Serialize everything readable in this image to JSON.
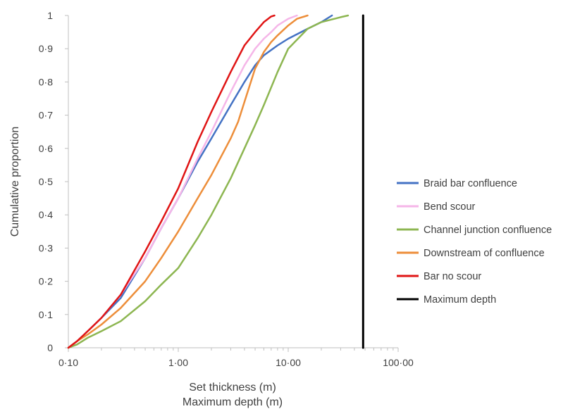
{
  "chart_data": {
    "type": "line",
    "xscale": "log",
    "xlim": [
      0.1,
      100
    ],
    "ylim": [
      0,
      1
    ],
    "x_ticks": [
      "0·10",
      "1·00",
      "10·00",
      "100·00"
    ],
    "y_ticks": [
      "0",
      "0·1",
      "0·2",
      "0·3",
      "0·4",
      "0·5",
      "0·6",
      "0·7",
      "0·8",
      "0·9",
      "1"
    ],
    "xlabel": "Set thickness (m)",
    "xlabel2": "Maximum depth (m)",
    "ylabel": "Cumulative proportion",
    "legend_position": "right",
    "series": [
      {
        "name": "Braid bar confluence",
        "color": "#4472C4",
        "x": [
          0.1,
          0.12,
          0.15,
          0.2,
          0.3,
          0.5,
          0.7,
          1.0,
          1.5,
          2.0,
          3.0,
          4.0,
          5.0,
          6.0,
          8.0,
          10.0,
          15.0,
          20.0,
          25.0
        ],
        "y": [
          0,
          0.02,
          0.05,
          0.09,
          0.15,
          0.27,
          0.36,
          0.45,
          0.56,
          0.63,
          0.73,
          0.8,
          0.85,
          0.88,
          0.91,
          0.93,
          0.96,
          0.98,
          1.0
        ]
      },
      {
        "name": "Bend scour",
        "color": "#F5B6E8",
        "x": [
          0.1,
          0.12,
          0.15,
          0.2,
          0.3,
          0.5,
          0.7,
          1.0,
          1.5,
          2.0,
          3.0,
          4.0,
          5.0,
          6.0,
          7.0,
          8.0,
          10.0,
          12.0
        ],
        "y": [
          0,
          0.02,
          0.05,
          0.09,
          0.16,
          0.27,
          0.36,
          0.45,
          0.57,
          0.65,
          0.77,
          0.85,
          0.9,
          0.93,
          0.95,
          0.97,
          0.99,
          1.0
        ]
      },
      {
        "name": "Channel junction confluence",
        "color": "#8DB651",
        "x": [
          0.1,
          0.12,
          0.15,
          0.2,
          0.3,
          0.5,
          0.7,
          1.0,
          1.5,
          2.0,
          3.0,
          4.0,
          5.0,
          6.0,
          8.0,
          10.0,
          15.0,
          20.0,
          30.0,
          35.0
        ],
        "y": [
          0,
          0.01,
          0.03,
          0.05,
          0.08,
          0.14,
          0.19,
          0.24,
          0.33,
          0.4,
          0.51,
          0.6,
          0.67,
          0.73,
          0.83,
          0.9,
          0.96,
          0.98,
          0.995,
          1.0
        ]
      },
      {
        "name": "Downstream of confluence",
        "color": "#ED8E3A",
        "x": [
          0.1,
          0.12,
          0.15,
          0.2,
          0.3,
          0.5,
          0.7,
          1.0,
          1.5,
          2.0,
          3.0,
          3.5,
          4.0,
          5.0,
          6.0,
          7.0,
          8.0,
          10.0,
          12.0,
          15.0
        ],
        "y": [
          0,
          0.02,
          0.04,
          0.07,
          0.12,
          0.2,
          0.27,
          0.35,
          0.45,
          0.52,
          0.63,
          0.68,
          0.74,
          0.84,
          0.89,
          0.92,
          0.94,
          0.97,
          0.99,
          1.0
        ]
      },
      {
        "name": "Bar no scour",
        "color": "#E01515",
        "x": [
          0.1,
          0.12,
          0.15,
          0.2,
          0.3,
          0.5,
          0.7,
          1.0,
          1.5,
          2.0,
          3.0,
          4.0,
          5.0,
          6.0,
          7.0,
          7.5
        ],
        "y": [
          0,
          0.02,
          0.05,
          0.09,
          0.16,
          0.29,
          0.38,
          0.48,
          0.62,
          0.71,
          0.83,
          0.91,
          0.95,
          0.98,
          0.997,
          1.0
        ]
      },
      {
        "name": "Maximum depth",
        "color": "#000000",
        "x": [
          48,
          48
        ],
        "y": [
          0,
          1
        ]
      }
    ]
  }
}
